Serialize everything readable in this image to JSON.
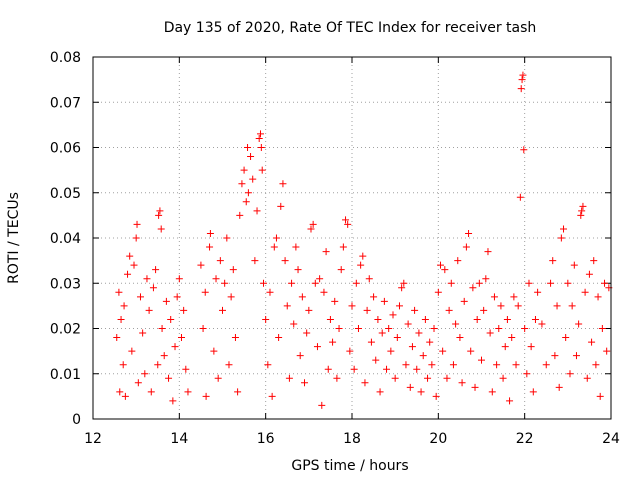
{
  "chart_data": {
    "type": "scatter",
    "title": "Day 135 of 2020, Rate Of TEC Index for receiver tash",
    "xlabel": "GPS time / hours",
    "ylabel": "ROTI / TECUs",
    "xlim": [
      12,
      24
    ],
    "ylim": [
      0,
      0.08
    ],
    "xticks": [
      12,
      14,
      16,
      18,
      20,
      22,
      24
    ],
    "yticks": [
      0,
      0.01,
      0.02,
      0.03,
      0.04,
      0.05,
      0.06,
      0.07,
      0.08
    ],
    "grid": true,
    "marker": "+",
    "series_color": "#ff0000",
    "series": [
      {
        "name": "ROTI",
        "points": [
          [
            12.55,
            0.018
          ],
          [
            12.6,
            0.028
          ],
          [
            12.62,
            0.006
          ],
          [
            12.65,
            0.022
          ],
          [
            12.7,
            0.012
          ],
          [
            12.72,
            0.025
          ],
          [
            12.75,
            0.005
          ],
          [
            12.8,
            0.032
          ],
          [
            12.85,
            0.036
          ],
          [
            12.9,
            0.015
          ],
          [
            12.95,
            0.034
          ],
          [
            13.0,
            0.04
          ],
          [
            13.02,
            0.043
          ],
          [
            13.05,
            0.008
          ],
          [
            13.1,
            0.027
          ],
          [
            13.15,
            0.019
          ],
          [
            13.2,
            0.01
          ],
          [
            13.25,
            0.031
          ],
          [
            13.3,
            0.024
          ],
          [
            13.35,
            0.006
          ],
          [
            13.4,
            0.029
          ],
          [
            13.45,
            0.033
          ],
          [
            13.5,
            0.012
          ],
          [
            13.52,
            0.045
          ],
          [
            13.55,
            0.046
          ],
          [
            13.58,
            0.042
          ],
          [
            13.6,
            0.02
          ],
          [
            13.65,
            0.014
          ],
          [
            13.7,
            0.026
          ],
          [
            13.75,
            0.009
          ],
          [
            13.8,
            0.022
          ],
          [
            13.85,
            0.004
          ],
          [
            13.9,
            0.016
          ],
          [
            13.95,
            0.027
          ],
          [
            14.0,
            0.031
          ],
          [
            14.05,
            0.018
          ],
          [
            14.1,
            0.024
          ],
          [
            14.15,
            0.011
          ],
          [
            14.2,
            0.006
          ],
          [
            14.5,
            0.034
          ],
          [
            14.55,
            0.02
          ],
          [
            14.6,
            0.028
          ],
          [
            14.62,
            0.005
          ],
          [
            14.7,
            0.038
          ],
          [
            14.72,
            0.041
          ],
          [
            14.8,
            0.015
          ],
          [
            14.85,
            0.031
          ],
          [
            14.9,
            0.009
          ],
          [
            14.95,
            0.035
          ],
          [
            15.0,
            0.024
          ],
          [
            15.05,
            0.03
          ],
          [
            15.1,
            0.04
          ],
          [
            15.15,
            0.012
          ],
          [
            15.2,
            0.027
          ],
          [
            15.25,
            0.033
          ],
          [
            15.3,
            0.018
          ],
          [
            15.35,
            0.006
          ],
          [
            15.4,
            0.045
          ],
          [
            15.45,
            0.052
          ],
          [
            15.5,
            0.055
          ],
          [
            15.55,
            0.048
          ],
          [
            15.58,
            0.06
          ],
          [
            15.6,
            0.05
          ],
          [
            15.65,
            0.058
          ],
          [
            15.7,
            0.053
          ],
          [
            15.75,
            0.035
          ],
          [
            15.8,
            0.046
          ],
          [
            15.85,
            0.062
          ],
          [
            15.88,
            0.063
          ],
          [
            15.9,
            0.06
          ],
          [
            15.92,
            0.055
          ],
          [
            15.95,
            0.03
          ],
          [
            16.0,
            0.022
          ],
          [
            16.05,
            0.012
          ],
          [
            16.1,
            0.028
          ],
          [
            16.15,
            0.005
          ],
          [
            16.2,
            0.038
          ],
          [
            16.25,
            0.04
          ],
          [
            16.3,
            0.018
          ],
          [
            16.35,
            0.047
          ],
          [
            16.4,
            0.052
          ],
          [
            16.45,
            0.035
          ],
          [
            16.5,
            0.025
          ],
          [
            16.55,
            0.009
          ],
          [
            16.6,
            0.03
          ],
          [
            16.65,
            0.021
          ],
          [
            16.7,
            0.038
          ],
          [
            16.75,
            0.033
          ],
          [
            16.8,
            0.014
          ],
          [
            16.85,
            0.027
          ],
          [
            16.9,
            0.008
          ],
          [
            16.95,
            0.019
          ],
          [
            17.0,
            0.024
          ],
          [
            17.05,
            0.042
          ],
          [
            17.1,
            0.043
          ],
          [
            17.15,
            0.03
          ],
          [
            17.2,
            0.016
          ],
          [
            17.25,
            0.031
          ],
          [
            17.3,
            0.003
          ],
          [
            17.35,
            0.028
          ],
          [
            17.4,
            0.037
          ],
          [
            17.45,
            0.011
          ],
          [
            17.5,
            0.022
          ],
          [
            17.55,
            0.017
          ],
          [
            17.6,
            0.026
          ],
          [
            17.65,
            0.009
          ],
          [
            17.7,
            0.02
          ],
          [
            17.75,
            0.033
          ],
          [
            17.8,
            0.038
          ],
          [
            17.85,
            0.044
          ],
          [
            17.9,
            0.043
          ],
          [
            17.95,
            0.015
          ],
          [
            18.0,
            0.025
          ],
          [
            18.05,
            0.011
          ],
          [
            18.1,
            0.03
          ],
          [
            18.15,
            0.02
          ],
          [
            18.2,
            0.034
          ],
          [
            18.25,
            0.036
          ],
          [
            18.3,
            0.008
          ],
          [
            18.35,
            0.024
          ],
          [
            18.4,
            0.031
          ],
          [
            18.45,
            0.017
          ],
          [
            18.5,
            0.027
          ],
          [
            18.55,
            0.013
          ],
          [
            18.6,
            0.022
          ],
          [
            18.65,
            0.006
          ],
          [
            18.7,
            0.019
          ],
          [
            18.75,
            0.026
          ],
          [
            18.8,
            0.011
          ],
          [
            18.85,
            0.02
          ],
          [
            18.9,
            0.015
          ],
          [
            18.95,
            0.023
          ],
          [
            19.0,
            0.009
          ],
          [
            19.05,
            0.018
          ],
          [
            19.1,
            0.025
          ],
          [
            19.15,
            0.029
          ],
          [
            19.2,
            0.03
          ],
          [
            19.25,
            0.012
          ],
          [
            19.3,
            0.021
          ],
          [
            19.35,
            0.007
          ],
          [
            19.4,
            0.016
          ],
          [
            19.45,
            0.024
          ],
          [
            19.5,
            0.011
          ],
          [
            19.55,
            0.019
          ],
          [
            19.6,
            0.006
          ],
          [
            19.65,
            0.014
          ],
          [
            19.7,
            0.022
          ],
          [
            19.75,
            0.009
          ],
          [
            19.8,
            0.017
          ],
          [
            19.85,
            0.012
          ],
          [
            19.9,
            0.02
          ],
          [
            19.95,
            0.005
          ],
          [
            20.0,
            0.028
          ],
          [
            20.05,
            0.034
          ],
          [
            20.1,
            0.015
          ],
          [
            20.15,
            0.033
          ],
          [
            20.2,
            0.009
          ],
          [
            20.25,
            0.024
          ],
          [
            20.3,
            0.03
          ],
          [
            20.35,
            0.012
          ],
          [
            20.4,
            0.021
          ],
          [
            20.45,
            0.035
          ],
          [
            20.5,
            0.018
          ],
          [
            20.55,
            0.008
          ],
          [
            20.6,
            0.026
          ],
          [
            20.65,
            0.038
          ],
          [
            20.7,
            0.041
          ],
          [
            20.75,
            0.015
          ],
          [
            20.8,
            0.029
          ],
          [
            20.85,
            0.007
          ],
          [
            20.9,
            0.022
          ],
          [
            20.95,
            0.03
          ],
          [
            21.0,
            0.013
          ],
          [
            21.05,
            0.024
          ],
          [
            21.1,
            0.031
          ],
          [
            21.15,
            0.037
          ],
          [
            21.2,
            0.019
          ],
          [
            21.25,
            0.006
          ],
          [
            21.3,
            0.027
          ],
          [
            21.35,
            0.012
          ],
          [
            21.4,
            0.02
          ],
          [
            21.45,
            0.025
          ],
          [
            21.5,
            0.009
          ],
          [
            21.55,
            0.016
          ],
          [
            21.6,
            0.022
          ],
          [
            21.65,
            0.004
          ],
          [
            21.7,
            0.018
          ],
          [
            21.75,
            0.027
          ],
          [
            21.8,
            0.012
          ],
          [
            21.85,
            0.025
          ],
          [
            21.9,
            0.049
          ],
          [
            21.92,
            0.073
          ],
          [
            21.94,
            0.075
          ],
          [
            21.96,
            0.076
          ],
          [
            21.98,
            0.0595
          ],
          [
            22.0,
            0.02
          ],
          [
            22.05,
            0.01
          ],
          [
            22.1,
            0.03
          ],
          [
            22.15,
            0.016
          ],
          [
            22.2,
            0.006
          ],
          [
            22.25,
            0.022
          ],
          [
            22.3,
            0.028
          ],
          [
            22.4,
            0.021
          ],
          [
            22.5,
            0.012
          ],
          [
            22.6,
            0.03
          ],
          [
            22.65,
            0.035
          ],
          [
            22.7,
            0.014
          ],
          [
            22.75,
            0.025
          ],
          [
            22.8,
            0.007
          ],
          [
            22.85,
            0.04
          ],
          [
            22.9,
            0.042
          ],
          [
            22.95,
            0.018
          ],
          [
            23.0,
            0.03
          ],
          [
            23.05,
            0.01
          ],
          [
            23.1,
            0.025
          ],
          [
            23.15,
            0.034
          ],
          [
            23.2,
            0.014
          ],
          [
            23.25,
            0.021
          ],
          [
            23.3,
            0.045
          ],
          [
            23.32,
            0.046
          ],
          [
            23.35,
            0.047
          ],
          [
            23.4,
            0.028
          ],
          [
            23.45,
            0.009
          ],
          [
            23.5,
            0.032
          ],
          [
            23.55,
            0.017
          ],
          [
            23.6,
            0.035
          ],
          [
            23.65,
            0.012
          ],
          [
            23.7,
            0.027
          ],
          [
            23.75,
            0.005
          ],
          [
            23.8,
            0.02
          ],
          [
            23.85,
            0.03
          ],
          [
            23.9,
            0.015
          ],
          [
            23.95,
            0.029
          ]
        ]
      }
    ]
  }
}
